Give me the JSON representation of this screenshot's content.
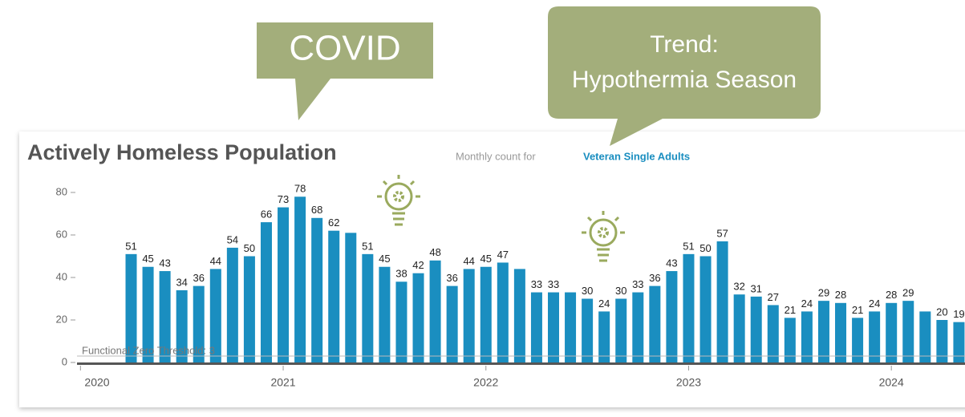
{
  "callouts": [
    {
      "text": "COVID"
    },
    {
      "lines": [
        "Trend:",
        "Hypothermia Season"
      ]
    }
  ],
  "chart_data": {
    "type": "bar",
    "title": "Actively Homeless Population",
    "subtitle": "Monthly count for",
    "subtitle_highlight": "Veteran Single Adults",
    "categories": [
      null,
      null,
      null,
      null,
      null,
      null,
      null,
      null,
      null,
      null,
      null,
      null,
      null,
      null,
      null,
      null,
      null,
      null,
      null,
      null,
      null,
      null,
      null,
      null,
      null,
      null,
      null,
      null,
      null,
      null,
      null,
      null,
      null,
      null,
      null,
      null,
      null,
      null,
      null,
      null,
      null,
      null,
      null,
      null,
      null,
      null,
      null,
      null,
      null,
      null
    ],
    "values": [
      51,
      45,
      43,
      34,
      36,
      44,
      54,
      50,
      66,
      73,
      78,
      68,
      62,
      61,
      51,
      45,
      38,
      42,
      48,
      36,
      44,
      45,
      47,
      44,
      33,
      33,
      33,
      30,
      24,
      30,
      33,
      36,
      43,
      51,
      50,
      57,
      32,
      31,
      27,
      21,
      24,
      29,
      28,
      21,
      24,
      28,
      29,
      24,
      20,
      19
    ],
    "value_labels": [
      "51",
      "45",
      "43",
      "34",
      "36",
      "44",
      "54",
      "50",
      "66",
      "73",
      "78",
      "68",
      "62",
      null,
      "51",
      "45",
      "38",
      "42",
      "48",
      "36",
      "44",
      "45",
      "47",
      null,
      "33",
      "33",
      null,
      "30",
      "24",
      "30",
      "33",
      "36",
      "43",
      "51",
      "50",
      "57",
      "32",
      "31",
      "27",
      "21",
      "24",
      "29",
      "28",
      "21",
      "24",
      "28",
      "29",
      null,
      "20",
      "19"
    ],
    "color": "#1a8ec0",
    "xticks": [
      2020,
      2021,
      2022,
      2023,
      2024
    ],
    "ylim": [
      0,
      80
    ],
    "yticks": [
      0,
      20,
      40,
      60,
      80
    ],
    "threshold": {
      "label": "Functional Zero Threshold: 3",
      "value": 3
    }
  }
}
